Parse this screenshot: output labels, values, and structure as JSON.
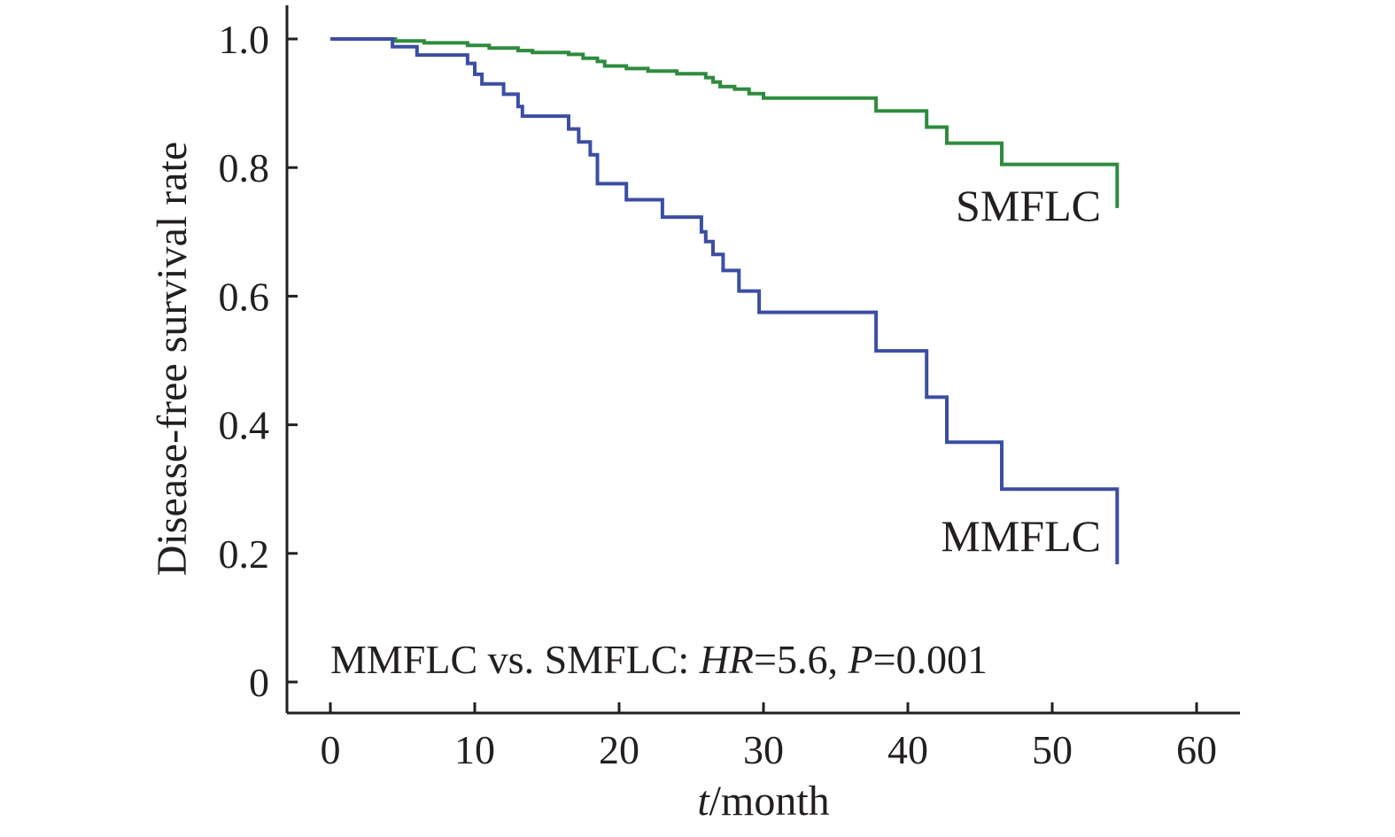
{
  "chart_data": {
    "type": "line",
    "title": "",
    "xlabel_italic": "t",
    "xlabel_rest": "/month",
    "ylabel": "Disease-free survival rate",
    "xlim": [
      -3,
      63
    ],
    "ylim": [
      -0.05,
      1.05
    ],
    "xticks": [
      0,
      10,
      20,
      30,
      40,
      50,
      60
    ],
    "xtick_labels": [
      "0",
      "10",
      "20",
      "30",
      "40",
      "50",
      "60"
    ],
    "yticks": [
      0,
      0.2,
      0.4,
      0.6,
      0.8,
      1.0
    ],
    "ytick_labels": [
      "0",
      "0.2",
      "0.4",
      "0.6",
      "0.8",
      "1.0"
    ],
    "grid": false,
    "series": [
      {
        "name": "SMFLC",
        "color": "#2e8b3e",
        "step": true,
        "points": [
          [
            0,
            1.0
          ],
          [
            4.5,
            0.997
          ],
          [
            6.5,
            0.994
          ],
          [
            9.5,
            0.99
          ],
          [
            11,
            0.986
          ],
          [
            13,
            0.982
          ],
          [
            14,
            0.979
          ],
          [
            16.5,
            0.976
          ],
          [
            17.5,
            0.97
          ],
          [
            18.5,
            0.965
          ],
          [
            19,
            0.958
          ],
          [
            20.5,
            0.954
          ],
          [
            22,
            0.95
          ],
          [
            24,
            0.946
          ],
          [
            26,
            0.94
          ],
          [
            26.5,
            0.933
          ],
          [
            27,
            0.926
          ],
          [
            28,
            0.922
          ],
          [
            29,
            0.915
          ],
          [
            30,
            0.908
          ],
          [
            37.8,
            0.888
          ],
          [
            41.3,
            0.863
          ],
          [
            42.7,
            0.838
          ],
          [
            46.5,
            0.805
          ],
          [
            54.5,
            0.805
          ],
          [
            54.5,
            0.737
          ]
        ]
      },
      {
        "name": "MMFLC",
        "color": "#3b4ea3",
        "step": true,
        "points": [
          [
            0,
            1.0
          ],
          [
            4.3,
            0.988
          ],
          [
            6,
            0.975
          ],
          [
            9.5,
            0.962
          ],
          [
            10,
            0.945
          ],
          [
            10.5,
            0.93
          ],
          [
            12,
            0.914
          ],
          [
            13,
            0.895
          ],
          [
            13.3,
            0.88
          ],
          [
            16.5,
            0.86
          ],
          [
            17.2,
            0.84
          ],
          [
            18,
            0.82
          ],
          [
            18.5,
            0.775
          ],
          [
            20.5,
            0.75
          ],
          [
            23,
            0.723
          ],
          [
            25.7,
            0.7
          ],
          [
            26,
            0.685
          ],
          [
            26.5,
            0.665
          ],
          [
            27.2,
            0.64
          ],
          [
            28.3,
            0.608
          ],
          [
            29.7,
            0.575
          ],
          [
            37.8,
            0.515
          ],
          [
            41.3,
            0.443
          ],
          [
            42.7,
            0.373
          ],
          [
            46.5,
            0.3
          ],
          [
            54.5,
            0.3
          ],
          [
            54.5,
            0.183
          ]
        ]
      }
    ],
    "series_labels": [
      "SMFLC",
      "MMFLC"
    ],
    "annotation": {
      "prefix": "MMFLC vs. SMFLC: ",
      "hr_italic": "HR",
      "hr_value": "=5.6, ",
      "p_italic": "P",
      "p_value": "=0.001"
    }
  }
}
